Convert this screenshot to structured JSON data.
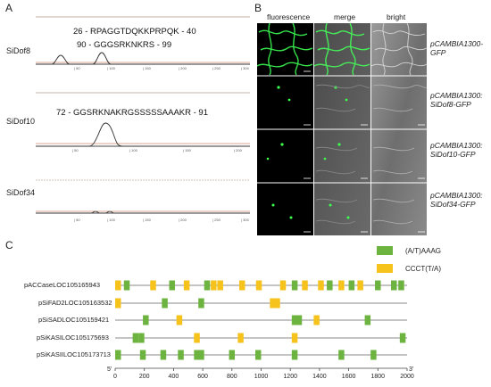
{
  "panels": {
    "a": {
      "letter": "A",
      "rows": [
        {
          "label": "SiDof8",
          "seqs": [
            "26 - RPAGGTDQKKPRPQK - 40",
            "90 - GGGSRKNKRS - 99"
          ],
          "ticks": [
            "| 50",
            "| 100",
            "| 150",
            "| 200",
            "| 250",
            "| 300"
          ]
        },
        {
          "label": "SiDof10",
          "seqs": [
            "72 - GGSRKNAKRGSSSSSAAAKR - 91"
          ],
          "ticks": [
            "| 50",
            "| 100",
            "| 150",
            "| 200"
          ]
        },
        {
          "label": "SiDof34",
          "seqs": [],
          "ticks": [
            "| 50",
            "| 100",
            "| 150",
            "| 200",
            "| 250",
            "| 300"
          ]
        }
      ]
    },
    "b": {
      "letter": "B",
      "columns": [
        "fluorescence",
        "merge",
        "bright"
      ],
      "constructs": [
        [
          "pCAMBIA1300-",
          "GFP"
        ],
        [
          "pCAMBIA1300:",
          "SiDof8-GFP"
        ],
        [
          "pCAMBIA1300:",
          "SiDof10-GFP"
        ],
        [
          "pCAMBIA1300:",
          "SiDof34-GFP"
        ]
      ]
    },
    "c": {
      "letter": "C",
      "legend": [
        {
          "label": "(A/T)AAAG",
          "color": "#6db33f"
        },
        {
          "label": "CCCT(T/A)",
          "color": "#f6c21c"
        }
      ],
      "promoters": [
        "pACCaseLOC105165943",
        "pSiFAD2LOC105163532",
        "pSiSADLOC105159421",
        "pSiKASILOC105175693",
        "pSiKASIILOC105173713"
      ],
      "axis": {
        "start_label": "5'",
        "end_label": "3'",
        "min": 0,
        "max": 2000,
        "ticks": [
          "0",
          "200",
          "400",
          "600",
          "800",
          "1000",
          "1200",
          "1400",
          "1600",
          "1800",
          "2000"
        ]
      },
      "elements": [
        [
          [
            0,
            "y"
          ],
          [
            60,
            "g"
          ],
          [
            240,
            "y"
          ],
          [
            370,
            "g"
          ],
          [
            470,
            "y"
          ],
          [
            610,
            "g"
          ],
          [
            655,
            "y"
          ],
          [
            700,
            "y"
          ],
          [
            850,
            "y"
          ],
          [
            965,
            "y"
          ],
          [
            1130,
            "y"
          ],
          [
            1210,
            "g"
          ],
          [
            1280,
            "y"
          ],
          [
            1390,
            "y"
          ],
          [
            1450,
            "g"
          ],
          [
            1530,
            "y"
          ],
          [
            1600,
            "g"
          ],
          [
            1660,
            "y"
          ],
          [
            1780,
            "g"
          ],
          [
            1890,
            "g"
          ],
          [
            1940,
            "g"
          ]
        ],
        [
          [
            0,
            "y"
          ],
          [
            320,
            "g"
          ],
          [
            570,
            "g"
          ],
          [
            1060,
            "y"
          ],
          [
            1090,
            "y"
          ]
        ],
        [
          [
            190,
            "g"
          ],
          [
            420,
            "y"
          ],
          [
            1210,
            "g"
          ],
          [
            1240,
            "g"
          ],
          [
            1360,
            "y"
          ],
          [
            1710,
            "g"
          ]
        ],
        [
          [
            120,
            "g"
          ],
          [
            160,
            "g"
          ],
          [
            540,
            "y"
          ],
          [
            840,
            "y"
          ],
          [
            1210,
            "y"
          ],
          [
            1950,
            "g"
          ]
        ],
        [
          [
            0,
            "g"
          ],
          [
            170,
            "g"
          ],
          [
            310,
            "g"
          ],
          [
            430,
            "g"
          ],
          [
            540,
            "g"
          ],
          [
            570,
            "g"
          ],
          [
            780,
            "g"
          ],
          [
            960,
            "g"
          ],
          [
            1210,
            "g"
          ],
          [
            1530,
            "g"
          ],
          [
            1750,
            "g"
          ]
        ]
      ]
    }
  }
}
